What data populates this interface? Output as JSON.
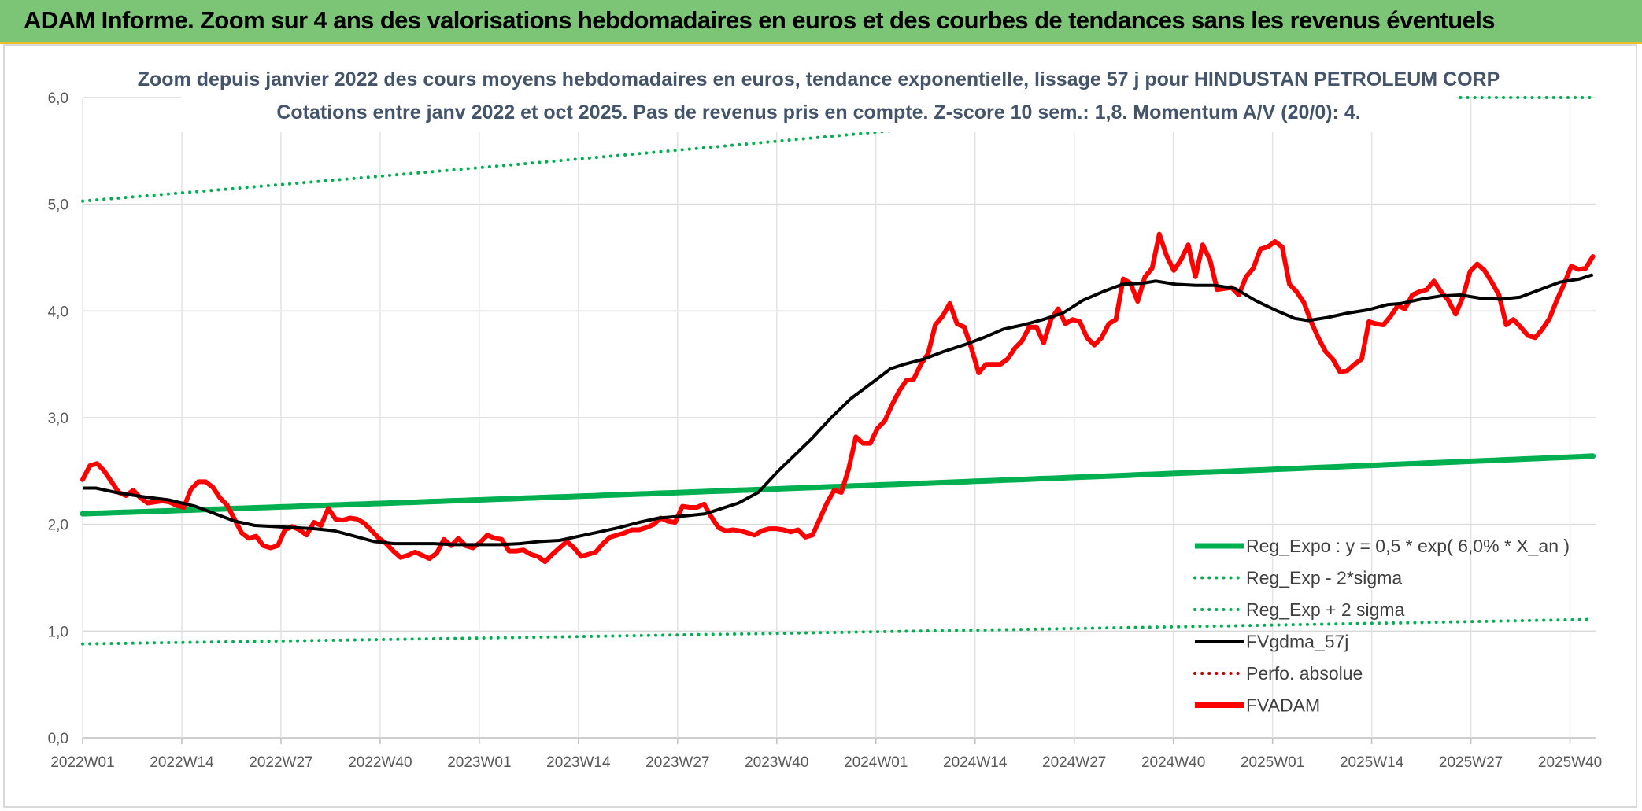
{
  "banner": {
    "title": "ADAM Informe. Zoom sur 4 ans des valorisations hebdomadaires en euros et des courbes de tendances sans les revenus éventuels"
  },
  "chart_data": {
    "type": "line",
    "title_line1": "Zoom depuis janvier 2022 des cours moyens hebdomadaires en euros, tendance exponentielle, lissage 57 j pour HINDUSTAN PETROLEUM CORP",
    "title_line2": "Cotations entre janv 2022 et oct 2025. Pas de revenus pris en compte. Z-score 10 sem.: 1,8. Momentum A/V (20/0): 4.",
    "xlabel": "",
    "ylabel": "",
    "ylim": [
      0,
      6
    ],
    "grid": true,
    "y_ticks": [
      "0,0",
      "1,0",
      "2,0",
      "3,0",
      "4,0",
      "5,0",
      "6,0"
    ],
    "x_tick_labels": [
      "2022W01",
      "2022W14",
      "2022W27",
      "2022W40",
      "2023W01",
      "2023W14",
      "2023W27",
      "2023W40",
      "2024W01",
      "2024W14",
      "2024W27",
      "2024W40",
      "2025W01",
      "2025W14",
      "2025W27",
      "2025W40"
    ],
    "legend_position": "bottom-right",
    "legend": [
      {
        "label": "Reg_Expo : y = 0,5 * exp( 6,0% *  X_an )",
        "color": "#00b050",
        "style": "solid"
      },
      {
        "label": "Reg_Exp - 2*sigma",
        "color": "#00b050",
        "style": "dotted"
      },
      {
        "label": "Reg_Exp + 2 sigma",
        "color": "#00b050",
        "style": "dotted"
      },
      {
        "label": "FVgdma_57j",
        "color": "#000000",
        "style": "solid"
      },
      {
        "label": "Perfo. absolue",
        "color": "#c00000",
        "style": "dotted"
      },
      {
        "label": "FVADAM",
        "color": "#ff0000",
        "style": "solid"
      }
    ],
    "weeks_total": 199,
    "x_start_week_index": 0,
    "series": {
      "reg_expo": {
        "start": 2.1,
        "end": 2.64
      },
      "reg_minus_2sigma": {
        "start": 0.88,
        "end": 1.11
      },
      "reg_plus_2sigma": {
        "start": 5.03,
        "end": 6.33,
        "clip_max": 6.0
      },
      "fvgdma_57j": [
        [
          0,
          2.34
        ],
        [
          2,
          2.34
        ],
        [
          5,
          2.3
        ],
        [
          9,
          2.26
        ],
        [
          13,
          2.23
        ],
        [
          17,
          2.17
        ],
        [
          20,
          2.1
        ],
        [
          23,
          2.03
        ],
        [
          26,
          1.99
        ],
        [
          29,
          1.98
        ],
        [
          32,
          1.97
        ],
        [
          35,
          1.96
        ],
        [
          38,
          1.94
        ],
        [
          41,
          1.89
        ],
        [
          44,
          1.84
        ],
        [
          47,
          1.82
        ],
        [
          50,
          1.82
        ],
        [
          53,
          1.82
        ],
        [
          56,
          1.81
        ],
        [
          60,
          1.81
        ],
        [
          63,
          1.81
        ],
        [
          66,
          1.82
        ],
        [
          69,
          1.84
        ],
        [
          72,
          1.85
        ],
        [
          75,
          1.89
        ],
        [
          78,
          1.93
        ],
        [
          81,
          1.97
        ],
        [
          84,
          2.02
        ],
        [
          87,
          2.06
        ],
        [
          91,
          2.08
        ],
        [
          94,
          2.1
        ],
        [
          96,
          2.14
        ],
        [
          99,
          2.2
        ],
        [
          102,
          2.3
        ],
        [
          105,
          2.5
        ],
        [
          107,
          2.62
        ],
        [
          110,
          2.8
        ],
        [
          113,
          3.0
        ],
        [
          116,
          3.18
        ],
        [
          119,
          3.32
        ],
        [
          122,
          3.46
        ],
        [
          124,
          3.5
        ],
        [
          127,
          3.55
        ],
        [
          130,
          3.62
        ],
        [
          133,
          3.68
        ],
        [
          136,
          3.75
        ],
        [
          139,
          3.83
        ],
        [
          142,
          3.87
        ],
        [
          145,
          3.92
        ],
        [
          148,
          3.98
        ],
        [
          151,
          4.1
        ],
        [
          154,
          4.18
        ],
        [
          157,
          4.25
        ],
        [
          160,
          4.26
        ],
        [
          162,
          4.28
        ],
        [
          165,
          4.25
        ],
        [
          168,
          4.24
        ],
        [
          171,
          4.24
        ],
        [
          174,
          4.21
        ],
        [
          177,
          4.1
        ],
        [
          180,
          4.01
        ],
        [
          183,
          3.93
        ],
        [
          185,
          3.91
        ],
        [
          188,
          3.94
        ],
        [
          191,
          3.98
        ],
        [
          194,
          4.01
        ],
        [
          197,
          4.06
        ],
        [
          199,
          4.07
        ],
        [
          202,
          4.11
        ],
        [
          205,
          4.14
        ],
        [
          208,
          4.15
        ],
        [
          211,
          4.12
        ],
        [
          214,
          4.11
        ],
        [
          217,
          4.13
        ],
        [
          220,
          4.2
        ],
        [
          223,
          4.27
        ],
        [
          226,
          4.3
        ],
        [
          228,
          4.34
        ]
      ],
      "fvadam": [
        [
          0,
          2.42
        ],
        [
          1,
          2.55
        ],
        [
          2,
          2.57
        ],
        [
          3,
          2.5
        ],
        [
          4,
          2.4
        ],
        [
          5,
          2.3
        ],
        [
          6,
          2.27
        ],
        [
          7,
          2.32
        ],
        [
          8,
          2.25
        ],
        [
          9,
          2.2
        ],
        [
          10,
          2.21
        ],
        [
          11,
          2.22
        ],
        [
          12,
          2.21
        ],
        [
          13,
          2.18
        ],
        [
          14,
          2.16
        ],
        [
          15,
          2.33
        ],
        [
          16,
          2.4
        ],
        [
          17,
          2.4
        ],
        [
          18,
          2.35
        ],
        [
          19,
          2.25
        ],
        [
          20,
          2.18
        ],
        [
          21,
          2.05
        ],
        [
          22,
          1.92
        ],
        [
          23,
          1.87
        ],
        [
          24,
          1.89
        ],
        [
          25,
          1.8
        ],
        [
          26,
          1.78
        ],
        [
          27,
          1.8
        ],
        [
          28,
          1.95
        ],
        [
          29,
          1.98
        ],
        [
          30,
          1.95
        ],
        [
          31,
          1.9
        ],
        [
          32,
          2.02
        ],
        [
          33,
          1.99
        ],
        [
          34,
          2.15
        ],
        [
          35,
          2.05
        ],
        [
          36,
          2.04
        ],
        [
          37,
          2.06
        ],
        [
          38,
          2.05
        ],
        [
          39,
          2.01
        ],
        [
          40,
          1.94
        ],
        [
          41,
          1.87
        ],
        [
          42,
          1.82
        ],
        [
          43,
          1.75
        ],
        [
          44,
          1.69
        ],
        [
          45,
          1.71
        ],
        [
          46,
          1.74
        ],
        [
          47,
          1.71
        ],
        [
          48,
          1.68
        ],
        [
          49,
          1.73
        ],
        [
          50,
          1.86
        ],
        [
          51,
          1.8
        ],
        [
          52,
          1.87
        ],
        [
          53,
          1.8
        ],
        [
          54,
          1.78
        ],
        [
          55,
          1.83
        ],
        [
          56,
          1.9
        ],
        [
          57,
          1.87
        ],
        [
          58,
          1.86
        ],
        [
          59,
          1.75
        ],
        [
          60,
          1.75
        ],
        [
          61,
          1.76
        ],
        [
          62,
          1.72
        ],
        [
          63,
          1.7
        ],
        [
          64,
          1.65
        ],
        [
          65,
          1.72
        ],
        [
          66,
          1.78
        ],
        [
          67,
          1.84
        ],
        [
          68,
          1.78
        ],
        [
          69,
          1.7
        ],
        [
          70,
          1.72
        ],
        [
          71,
          1.74
        ],
        [
          72,
          1.82
        ],
        [
          73,
          1.88
        ],
        [
          74,
          1.9
        ],
        [
          75,
          1.92
        ],
        [
          76,
          1.95
        ],
        [
          77,
          1.95
        ],
        [
          78,
          1.97
        ],
        [
          79,
          2.0
        ],
        [
          80,
          2.06
        ],
        [
          81,
          2.03
        ],
        [
          82,
          2.02
        ],
        [
          83,
          2.17
        ],
        [
          84,
          2.16
        ],
        [
          85,
          2.16
        ],
        [
          86,
          2.19
        ],
        [
          87,
          2.07
        ],
        [
          88,
          1.97
        ],
        [
          89,
          1.94
        ],
        [
          90,
          1.95
        ],
        [
          91,
          1.94
        ],
        [
          92,
          1.92
        ],
        [
          93,
          1.9
        ],
        [
          94,
          1.94
        ],
        [
          95,
          1.96
        ],
        [
          96,
          1.96
        ],
        [
          97,
          1.95
        ],
        [
          98,
          1.93
        ],
        [
          99,
          1.95
        ],
        [
          100,
          1.88
        ],
        [
          101,
          1.9
        ],
        [
          102,
          2.05
        ],
        [
          103,
          2.2
        ],
        [
          104,
          2.32
        ],
        [
          105,
          2.3
        ],
        [
          106,
          2.52
        ],
        [
          107,
          2.82
        ],
        [
          108,
          2.76
        ],
        [
          109,
          2.76
        ],
        [
          110,
          2.9
        ],
        [
          111,
          2.97
        ],
        [
          112,
          3.12
        ],
        [
          113,
          3.25
        ],
        [
          114,
          3.35
        ],
        [
          115,
          3.36
        ],
        [
          116,
          3.5
        ],
        [
          117,
          3.6
        ],
        [
          118,
          3.87
        ],
        [
          119,
          3.95
        ],
        [
          120,
          4.07
        ],
        [
          121,
          3.88
        ],
        [
          122,
          3.85
        ],
        [
          123,
          3.65
        ],
        [
          124,
          3.42
        ],
        [
          125,
          3.5
        ],
        [
          126,
          3.5
        ],
        [
          127,
          3.5
        ],
        [
          128,
          3.55
        ],
        [
          129,
          3.65
        ],
        [
          130,
          3.72
        ],
        [
          131,
          3.85
        ],
        [
          132,
          3.85
        ],
        [
          133,
          3.7
        ],
        [
          134,
          3.92
        ],
        [
          135,
          4.02
        ],
        [
          136,
          3.88
        ],
        [
          137,
          3.92
        ],
        [
          138,
          3.9
        ],
        [
          139,
          3.75
        ],
        [
          140,
          3.68
        ],
        [
          141,
          3.75
        ],
        [
          142,
          3.88
        ],
        [
          143,
          3.92
        ],
        [
          144,
          4.3
        ],
        [
          145,
          4.26
        ],
        [
          146,
          4.09
        ],
        [
          147,
          4.32
        ],
        [
          148,
          4.4
        ],
        [
          149,
          4.72
        ],
        [
          150,
          4.52
        ],
        [
          151,
          4.38
        ],
        [
          152,
          4.48
        ],
        [
          153,
          4.62
        ],
        [
          154,
          4.32
        ],
        [
          155,
          4.62
        ],
        [
          156,
          4.48
        ],
        [
          157,
          4.2
        ],
        [
          158,
          4.21
        ],
        [
          159,
          4.22
        ],
        [
          160,
          4.15
        ],
        [
          161,
          4.32
        ],
        [
          162,
          4.4
        ],
        [
          163,
          4.58
        ],
        [
          164,
          4.6
        ],
        [
          165,
          4.65
        ],
        [
          166,
          4.6
        ],
        [
          167,
          4.25
        ],
        [
          168,
          4.18
        ],
        [
          169,
          4.08
        ],
        [
          170,
          3.9
        ],
        [
          171,
          3.75
        ],
        [
          172,
          3.62
        ],
        [
          173,
          3.55
        ],
        [
          174,
          3.43
        ],
        [
          175,
          3.44
        ],
        [
          176,
          3.5
        ],
        [
          177,
          3.55
        ],
        [
          178,
          3.9
        ],
        [
          179,
          3.88
        ],
        [
          180,
          3.87
        ],
        [
          181,
          3.95
        ],
        [
          182,
          4.05
        ],
        [
          183,
          4.02
        ],
        [
          184,
          4.15
        ],
        [
          185,
          4.18
        ],
        [
          186,
          4.2
        ],
        [
          187,
          4.28
        ],
        [
          188,
          4.18
        ],
        [
          189,
          4.1
        ],
        [
          190,
          3.97
        ],
        [
          191,
          4.13
        ],
        [
          192,
          4.37
        ],
        [
          193,
          4.44
        ],
        [
          194,
          4.38
        ],
        [
          195,
          4.27
        ],
        [
          196,
          4.15
        ],
        [
          197,
          3.87
        ],
        [
          198,
          3.92
        ],
        [
          199,
          3.85
        ],
        [
          200,
          3.77
        ],
        [
          201,
          3.75
        ],
        [
          202,
          3.83
        ],
        [
          203,
          3.93
        ],
        [
          204,
          4.1
        ],
        [
          205,
          4.25
        ],
        [
          206,
          4.42
        ],
        [
          207,
          4.39
        ],
        [
          208,
          4.4
        ],
        [
          209,
          4.51
        ]
      ]
    }
  }
}
